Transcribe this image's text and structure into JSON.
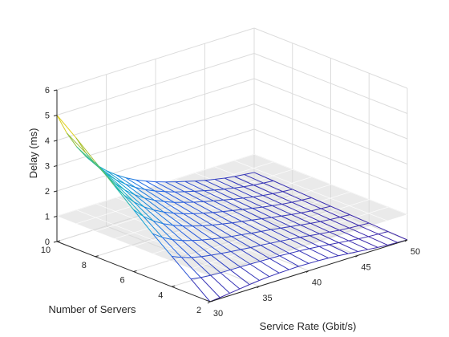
{
  "chart_data": {
    "type": "surface",
    "title": "",
    "xlabel": "Service Rate (Gbit/s)",
    "ylabel": "Number of Servers",
    "zlabel": "Delay (ms)",
    "xlim": [
      30,
      50
    ],
    "ylim": [
      2,
      10
    ],
    "zlim": [
      0,
      6
    ],
    "xticks": [
      "30",
      "35",
      "40",
      "45",
      "50"
    ],
    "yticks": [
      "2",
      "4",
      "6",
      "8",
      "10"
    ],
    "zticks": [
      "0",
      "1",
      "2",
      "3",
      "4",
      "5",
      "6"
    ],
    "grid": true,
    "colormap": "parula",
    "service_rate": [
      30,
      31,
      32,
      33,
      34,
      35,
      36,
      37,
      38,
      39,
      40,
      41,
      42,
      43,
      44,
      45,
      46,
      47,
      48,
      49,
      50
    ],
    "servers": [
      2,
      3,
      4,
      5,
      6,
      7,
      8,
      9,
      10
    ],
    "delay_at_2_servers": [
      0.0,
      0.04,
      0.09,
      0.14,
      0.19,
      0.23,
      0.26,
      0.28,
      0.29,
      0.3,
      0.29,
      0.28,
      0.26,
      0.23,
      0.19,
      0.15,
      0.11,
      0.07,
      0.04,
      0.02,
      0.0
    ],
    "delay_at_30_gbit": [
      0.0,
      0.6,
      1.2,
      1.8,
      2.45,
      3.1,
      3.75,
      4.4,
      5.0
    ],
    "threshold_plane": {
      "delay": 1.0,
      "color": "#d9d9d9"
    }
  }
}
